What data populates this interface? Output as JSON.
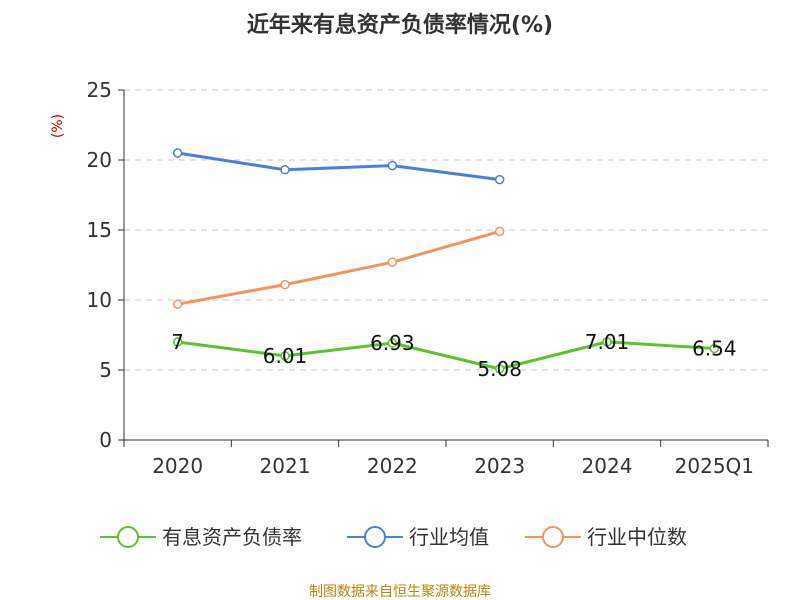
{
  "chart_data": {
    "type": "line",
    "title": "近年来有息资产负债率情况(%)",
    "ylabel": "(%)",
    "xlabel": "",
    "ylim": [
      0,
      25
    ],
    "yticks": [
      0,
      5,
      10,
      15,
      20,
      25
    ],
    "categories": [
      "2020",
      "2021",
      "2022",
      "2023",
      "2024",
      "2025Q1"
    ],
    "grid": true,
    "legend_position": "bottom",
    "series": [
      {
        "name": "有息资产负债率",
        "color": "#5ec22f",
        "values": [
          7,
          6.01,
          6.93,
          5.08,
          7.01,
          6.54
        ],
        "labels": [
          "7",
          "6.01",
          "6.93",
          "5.08",
          "7.01",
          "6.54"
        ]
      },
      {
        "name": "行业均值",
        "color": "#4a7fe0",
        "values": [
          20.5,
          19.3,
          19.6,
          18.6,
          null,
          null
        ]
      },
      {
        "name": "行业中位数",
        "color": "#f59262",
        "values": [
          9.7,
          11.1,
          12.7,
          14.9,
          null,
          null
        ]
      }
    ]
  },
  "source_text": "制图数据来自恒生聚源数据库"
}
